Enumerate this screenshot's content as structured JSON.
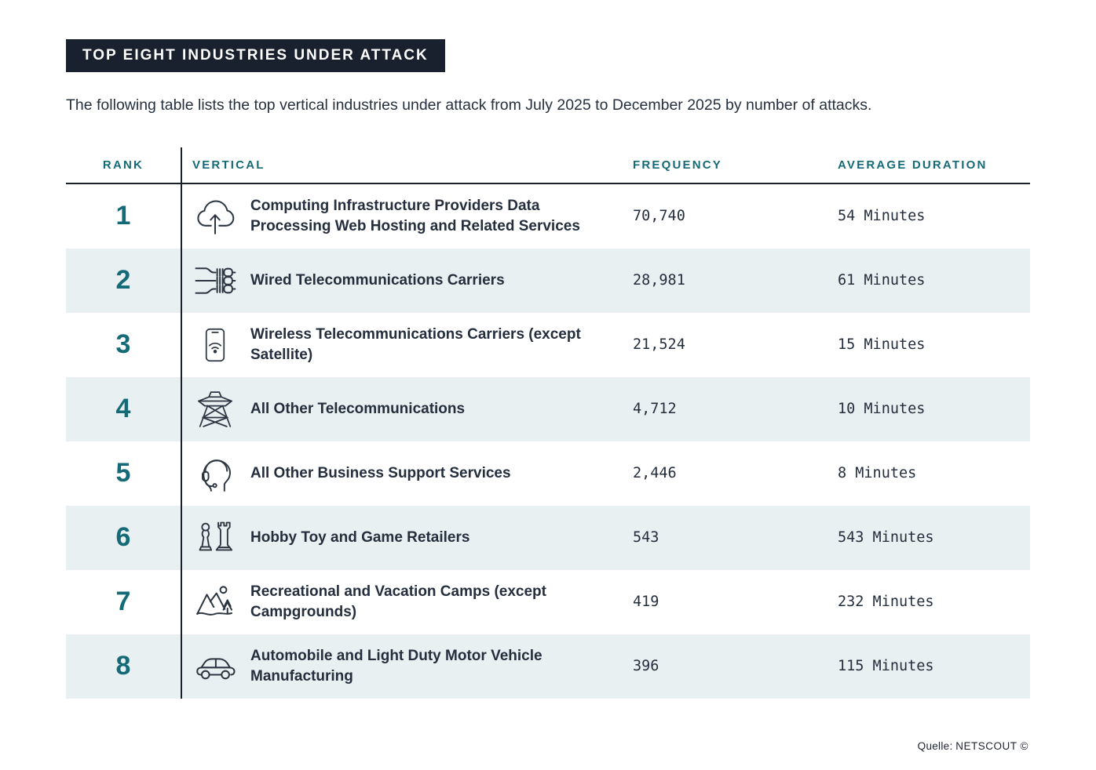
{
  "page": {
    "title_badge": "TOP EIGHT INDUSTRIES UNDER ATTACK",
    "description": "The following table lists the top vertical industries under attack from July 2025 to December 2025 by number of attacks.",
    "source_label": "Quelle:",
    "source_value": "NETSCOUT ©"
  },
  "colors": {
    "accent_teal": "#156A77",
    "text_navy": "#232E3D",
    "badge_bg": "#1A212E",
    "alt_row_bg": "#E9F0F2",
    "rule_line": "#1A202A"
  },
  "table": {
    "columns": [
      "RANK",
      "VERTICAL",
      "FREQUENCY",
      "AVERAGE DURATION"
    ],
    "rows": [
      {
        "rank": "1",
        "icon": "cloud-upload-icon",
        "vertical": "Computing Infrastructure Providers Data Processing Web Hosting and Related Services",
        "frequency": "70,740",
        "duration": "54 Minutes"
      },
      {
        "rank": "2",
        "icon": "wired-cables-icon",
        "vertical": "Wired Telecommunications Carriers",
        "frequency": "28,981",
        "duration": "61 Minutes"
      },
      {
        "rank": "3",
        "icon": "smartphone-wifi-icon",
        "vertical": "Wireless Telecommunications Carriers (except Satellite)",
        "frequency": "21,524",
        "duration": "15 Minutes"
      },
      {
        "rank": "4",
        "icon": "transmission-tower-icon",
        "vertical": "All Other Telecommunications",
        "frequency": "4,712",
        "duration": "10 Minutes"
      },
      {
        "rank": "5",
        "icon": "support-agent-icon",
        "vertical": "All Other Business Support Services",
        "frequency": "2,446",
        "duration": "8 Minutes"
      },
      {
        "rank": "6",
        "icon": "chess-pieces-icon",
        "vertical": "Hobby Toy and Game Retailers",
        "frequency": "543",
        "duration": "543 Minutes"
      },
      {
        "rank": "7",
        "icon": "mountains-camp-icon",
        "vertical": "Recreational and Vacation Camps (except Campgrounds)",
        "frequency": "419",
        "duration": "232 Minutes"
      },
      {
        "rank": "8",
        "icon": "car-icon",
        "vertical": "Automobile and Light Duty Motor Vehicle Manufacturing",
        "frequency": "396",
        "duration": "115 Minutes"
      }
    ]
  },
  "chart_data": {
    "type": "table",
    "title": "TOP EIGHT INDUSTRIES UNDER ATTACK",
    "subtitle": "The following table lists the top vertical industries under attack from July 2025 to December 2025 by number of attacks.",
    "columns": [
      "Rank",
      "Vertical",
      "Frequency",
      "Average Duration (Minutes)"
    ],
    "rows": [
      [
        1,
        "Computing Infrastructure Providers Data Processing Web Hosting and Related Services",
        70740,
        54
      ],
      [
        2,
        "Wired Telecommunications Carriers",
        28981,
        61
      ],
      [
        3,
        "Wireless Telecommunications Carriers (except Satellite)",
        21524,
        15
      ],
      [
        4,
        "All Other Telecommunications",
        4712,
        10
      ],
      [
        5,
        "All Other Business Support Services",
        2446,
        8
      ],
      [
        6,
        "Hobby Toy and Game Retailers",
        543,
        543
      ],
      [
        7,
        "Recreational and Vacation Camps (except Campgrounds)",
        419,
        232
      ],
      [
        8,
        "Automobile and Light Duty Motor Vehicle Manufacturing",
        396,
        115
      ]
    ],
    "source": "Quelle: NETSCOUT ©"
  }
}
